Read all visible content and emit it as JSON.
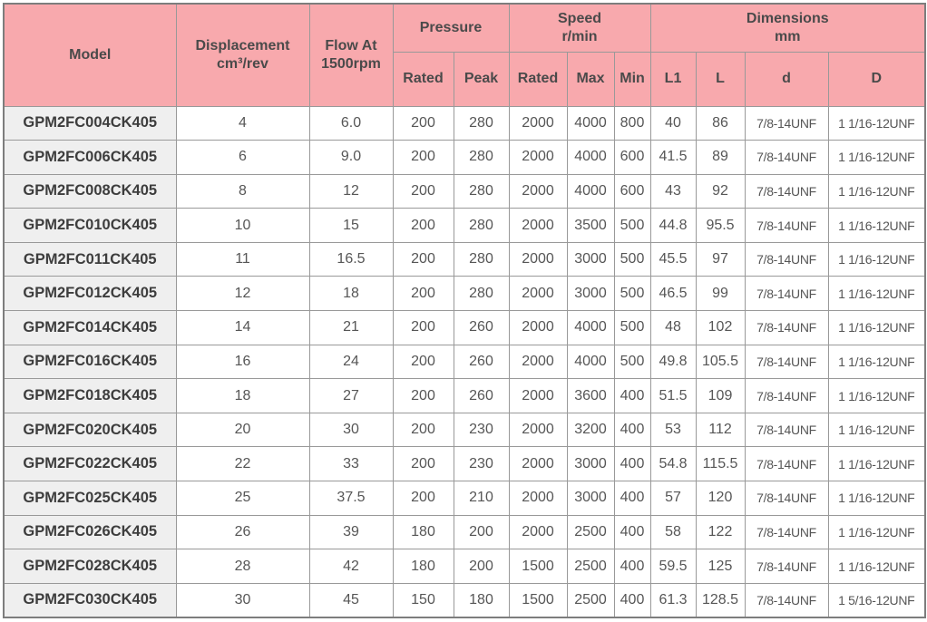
{
  "colors": {
    "header_bg": "#f8a9ad",
    "model_col_bg": "#efefef",
    "grid_border": "#999999",
    "outer_border": "#7d7d7d",
    "header_text": "#4a4a4a",
    "data_text": "#565656"
  },
  "table": {
    "header": {
      "model": "Model",
      "displacement_line1": "Displacement",
      "displacement_line2": "cm³/rev",
      "flow_line1": "Flow At",
      "flow_line2": "1500rpm",
      "pressure": "Pressure",
      "speed_line1": "Speed",
      "speed_line2": "r/min",
      "dimensions_line1": "Dimensions",
      "dimensions_line2": "mm",
      "rated": "Rated",
      "peak": "Peak",
      "speed_rated": "Rated",
      "max": "Max",
      "min": "Min",
      "L1": "L1",
      "L": "L",
      "d": "d",
      "D": "D"
    },
    "row_keys": [
      "model",
      "displacement",
      "flow",
      "pressure_rated",
      "pressure_peak",
      "speed_rated",
      "speed_max",
      "speed_min",
      "L1",
      "L",
      "d",
      "D"
    ],
    "rows": [
      {
        "model": "GPM2FC004CK405",
        "displacement": "4",
        "flow": "6.0",
        "pressure_rated": "200",
        "pressure_peak": "280",
        "speed_rated": "2000",
        "speed_max": "4000",
        "speed_min": "800",
        "L1": "40",
        "L": "86",
        "d": "7/8-14UNF",
        "D": "1 1/16-12UNF"
      },
      {
        "model": "GPM2FC006CK405",
        "displacement": "6",
        "flow": "9.0",
        "pressure_rated": "200",
        "pressure_peak": "280",
        "speed_rated": "2000",
        "speed_max": "4000",
        "speed_min": "600",
        "L1": "41.5",
        "L": "89",
        "d": "7/8-14UNF",
        "D": "1 1/16-12UNF"
      },
      {
        "model": "GPM2FC008CK405",
        "displacement": "8",
        "flow": "12",
        "pressure_rated": "200",
        "pressure_peak": "280",
        "speed_rated": "2000",
        "speed_max": "4000",
        "speed_min": "600",
        "L1": "43",
        "L": "92",
        "d": "7/8-14UNF",
        "D": "1 1/16-12UNF"
      },
      {
        "model": "GPM2FC010CK405",
        "displacement": "10",
        "flow": "15",
        "pressure_rated": "200",
        "pressure_peak": "280",
        "speed_rated": "2000",
        "speed_max": "3500",
        "speed_min": "500",
        "L1": "44.8",
        "L": "95.5",
        "d": "7/8-14UNF",
        "D": "1 1/16-12UNF"
      },
      {
        "model": "GPM2FC011CK405",
        "displacement": "11",
        "flow": "16.5",
        "pressure_rated": "200",
        "pressure_peak": "280",
        "speed_rated": "2000",
        "speed_max": "3000",
        "speed_min": "500",
        "L1": "45.5",
        "L": "97",
        "d": "7/8-14UNF",
        "D": "1 1/16-12UNF"
      },
      {
        "model": "GPM2FC012CK405",
        "displacement": "12",
        "flow": "18",
        "pressure_rated": "200",
        "pressure_peak": "280",
        "speed_rated": "2000",
        "speed_max": "3000",
        "speed_min": "500",
        "L1": "46.5",
        "L": "99",
        "d": "7/8-14UNF",
        "D": "1 1/16-12UNF"
      },
      {
        "model": "GPM2FC014CK405",
        "displacement": "14",
        "flow": "21",
        "pressure_rated": "200",
        "pressure_peak": "260",
        "speed_rated": "2000",
        "speed_max": "4000",
        "speed_min": "500",
        "L1": "48",
        "L": "102",
        "d": "7/8-14UNF",
        "D": "1 1/16-12UNF"
      },
      {
        "model": "GPM2FC016CK405",
        "displacement": "16",
        "flow": "24",
        "pressure_rated": "200",
        "pressure_peak": "260",
        "speed_rated": "2000",
        "speed_max": "4000",
        "speed_min": "500",
        "L1": "49.8",
        "L": "105.5",
        "d": "7/8-14UNF",
        "D": "1 1/16-12UNF"
      },
      {
        "model": "GPM2FC018CK405",
        "displacement": "18",
        "flow": "27",
        "pressure_rated": "200",
        "pressure_peak": "260",
        "speed_rated": "2000",
        "speed_max": "3600",
        "speed_min": "400",
        "L1": "51.5",
        "L": "109",
        "d": "7/8-14UNF",
        "D": "1 1/16-12UNF"
      },
      {
        "model": "GPM2FC020CK405",
        "displacement": "20",
        "flow": "30",
        "pressure_rated": "200",
        "pressure_peak": "230",
        "speed_rated": "2000",
        "speed_max": "3200",
        "speed_min": "400",
        "L1": "53",
        "L": "112",
        "d": "7/8-14UNF",
        "D": "1 1/16-12UNF"
      },
      {
        "model": "GPM2FC022CK405",
        "displacement": "22",
        "flow": "33",
        "pressure_rated": "200",
        "pressure_peak": "230",
        "speed_rated": "2000",
        "speed_max": "3000",
        "speed_min": "400",
        "L1": "54.8",
        "L": "115.5",
        "d": "7/8-14UNF",
        "D": "1 1/16-12UNF"
      },
      {
        "model": "GPM2FC025CK405",
        "displacement": "25",
        "flow": "37.5",
        "pressure_rated": "200",
        "pressure_peak": "210",
        "speed_rated": "2000",
        "speed_max": "3000",
        "speed_min": "400",
        "L1": "57",
        "L": "120",
        "d": "7/8-14UNF",
        "D": "1 1/16-12UNF"
      },
      {
        "model": "GPM2FC026CK405",
        "displacement": "26",
        "flow": "39",
        "pressure_rated": "180",
        "pressure_peak": "200",
        "speed_rated": "2000",
        "speed_max": "2500",
        "speed_min": "400",
        "L1": "58",
        "L": "122",
        "d": "7/8-14UNF",
        "D": "1 1/16-12UNF"
      },
      {
        "model": "GPM2FC028CK405",
        "displacement": "28",
        "flow": "42",
        "pressure_rated": "180",
        "pressure_peak": "200",
        "speed_rated": "1500",
        "speed_max": "2500",
        "speed_min": "400",
        "L1": "59.5",
        "L": "125",
        "d": "7/8-14UNF",
        "D": "1 1/16-12UNF"
      },
      {
        "model": "GPM2FC030CK405",
        "displacement": "30",
        "flow": "45",
        "pressure_rated": "150",
        "pressure_peak": "180",
        "speed_rated": "1500",
        "speed_max": "2500",
        "speed_min": "400",
        "L1": "61.3",
        "L": "128.5",
        "d": "7/8-14UNF",
        "D": "1 5/16-12UNF"
      }
    ]
  }
}
